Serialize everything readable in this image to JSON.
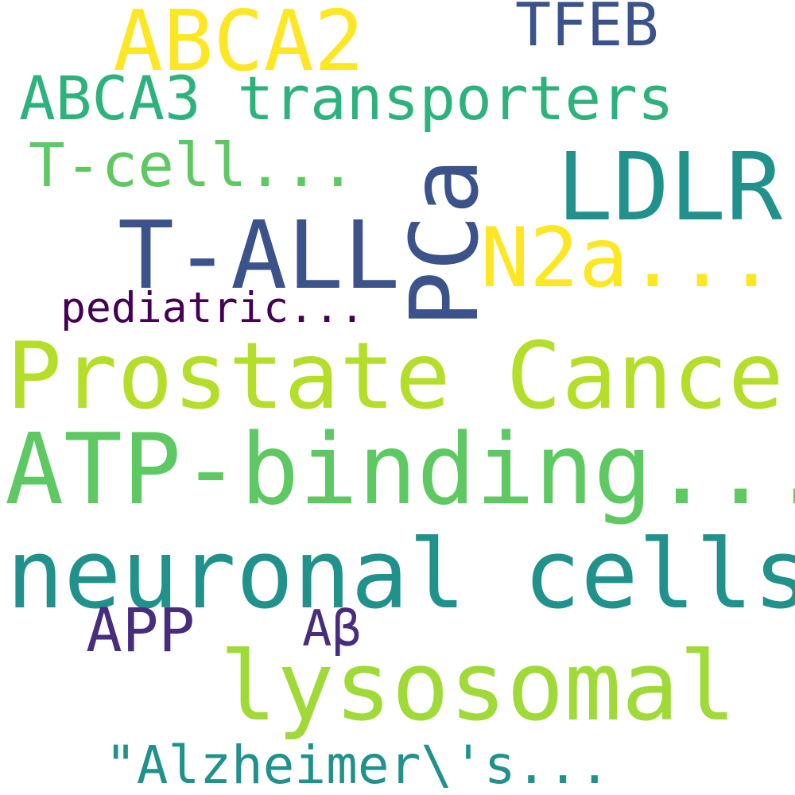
{
  "words": [
    {
      "id": "abca2",
      "text": "ABCA2",
      "color": "#fde725"
    },
    {
      "id": "tfeb",
      "text": "TFEB",
      "color": "#3b528b"
    },
    {
      "id": "abca3",
      "text": "ABCA3 transporters",
      "color": "#2db27d"
    },
    {
      "id": "tcell",
      "text": "T-cell...",
      "color": "#5ec962"
    },
    {
      "id": "ldlr",
      "text": "LDLR",
      "color": "#21918c"
    },
    {
      "id": "tall",
      "text": "T-ALL",
      "color": "#3b528b"
    },
    {
      "id": "pca",
      "text": "PCa",
      "color": "#3b528b"
    },
    {
      "id": "n2a",
      "text": "N2a...",
      "color": "#fde725"
    },
    {
      "id": "pediatric",
      "text": "pediatric...",
      "color": "#440154"
    },
    {
      "id": "prostate",
      "text": "Prostate Cancer",
      "color": "#b5de2b"
    },
    {
      "id": "atp",
      "text": "ATP-binding...",
      "color": "#5ec962"
    },
    {
      "id": "neuronal",
      "text": "neuronal cells",
      "color": "#21918c"
    },
    {
      "id": "app",
      "text": "APP",
      "color": "#472d7b"
    },
    {
      "id": "abeta",
      "text": "Aβ",
      "color": "#472d7b"
    },
    {
      "id": "lysosomal",
      "text": "lysosomal",
      "color": "#a0da39"
    },
    {
      "id": "alzheimer",
      "text": "\"Alzheimer\\'s...",
      "color": "#21918c"
    }
  ]
}
